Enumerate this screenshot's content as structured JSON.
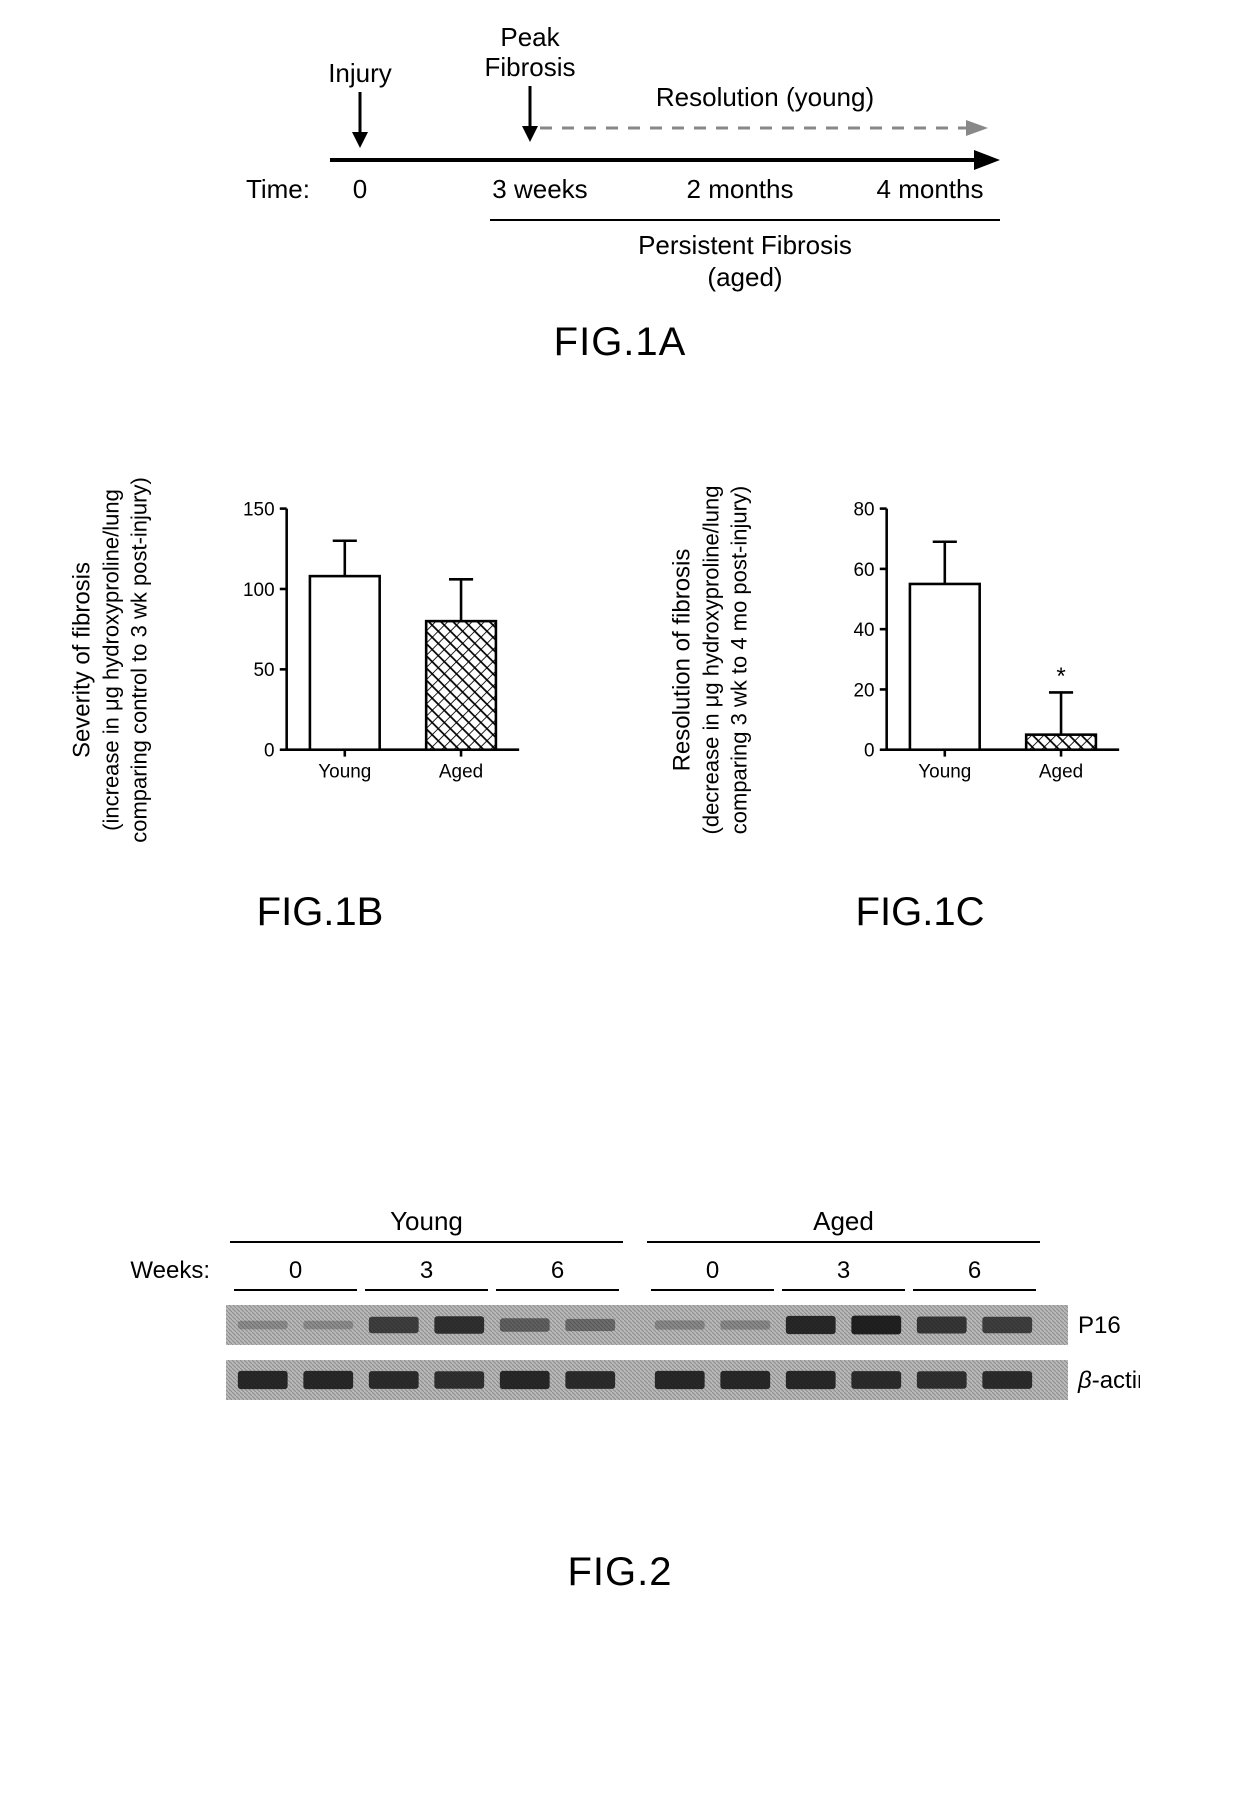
{
  "fig1a": {
    "label": "FIG.1A",
    "time_label": "Time:",
    "injury_label": "Injury",
    "peak_label_line1": "Peak",
    "peak_label_line2": "Fibrosis",
    "resolution_label": "Resolution (young)",
    "persistent_line1": "Persistent Fibrosis",
    "persistent_line2": "(aged)",
    "ticks": [
      "0",
      "3 weeks",
      "2 months",
      "4 months"
    ],
    "axis_color": "#000000",
    "dash_color": "#888888",
    "font_size_label": 26
  },
  "fig1b": {
    "label": "FIG.1B",
    "type": "bar",
    "categories": [
      "Young",
      "Aged"
    ],
    "values": [
      108,
      80
    ],
    "errors": [
      22,
      26
    ],
    "ylim": [
      0,
      150
    ],
    "yticks": [
      0,
      50,
      100,
      150
    ],
    "bar_colors": [
      "#ffffff",
      "hatch"
    ],
    "bar_stroke": "#000000",
    "bar_width_rel": 0.6,
    "ylabel_main": "Severity of fibrosis",
    "ylabel_sub1": "(increase in μg hydroxyproline/lung",
    "ylabel_sub2": "comparing control to 3 wk post-injury)",
    "axis_color": "#000000",
    "tick_fontsize": 22,
    "label_fontsize": 24,
    "annotation": ""
  },
  "fig1c": {
    "label": "FIG.1C",
    "type": "bar",
    "categories": [
      "Young",
      "Aged"
    ],
    "values": [
      55,
      5
    ],
    "errors": [
      14,
      14
    ],
    "ylim": [
      0,
      80
    ],
    "yticks": [
      0,
      20,
      40,
      60,
      80
    ],
    "bar_colors": [
      "#ffffff",
      "hatch"
    ],
    "bar_stroke": "#000000",
    "bar_width_rel": 0.6,
    "ylabel_main": "Resolution of fibrosis",
    "ylabel_sub1": "(decrease in μg hydroxyproline/lung",
    "ylabel_sub2": "comparing 3 wk to 4 mo post-injury)",
    "axis_color": "#000000",
    "tick_fontsize": 22,
    "label_fontsize": 24,
    "annotation": "*",
    "annotation_on": "Aged"
  },
  "fig2": {
    "label": "FIG.2",
    "weeks_label": "Weeks:",
    "groups": [
      "Young",
      "Aged"
    ],
    "weeks": [
      "0",
      "3",
      "6"
    ],
    "lanes_per_week": 2,
    "row_labels": [
      "P16",
      "β-actin"
    ],
    "band_bg_color": "#b8b8b8",
    "band_dark_color": "#2a2a2a",
    "band_medium_color": "#555555",
    "p16_intensity": [
      0.05,
      0.05,
      0.7,
      0.8,
      0.45,
      0.35,
      0.1,
      0.1,
      0.85,
      0.9,
      0.75,
      0.7
    ],
    "actin_intensity": [
      0.85,
      0.85,
      0.82,
      0.8,
      0.85,
      0.82,
      0.85,
      0.85,
      0.85,
      0.82,
      0.8,
      0.82
    ],
    "font_size_header": 26,
    "font_size_side": 24
  }
}
